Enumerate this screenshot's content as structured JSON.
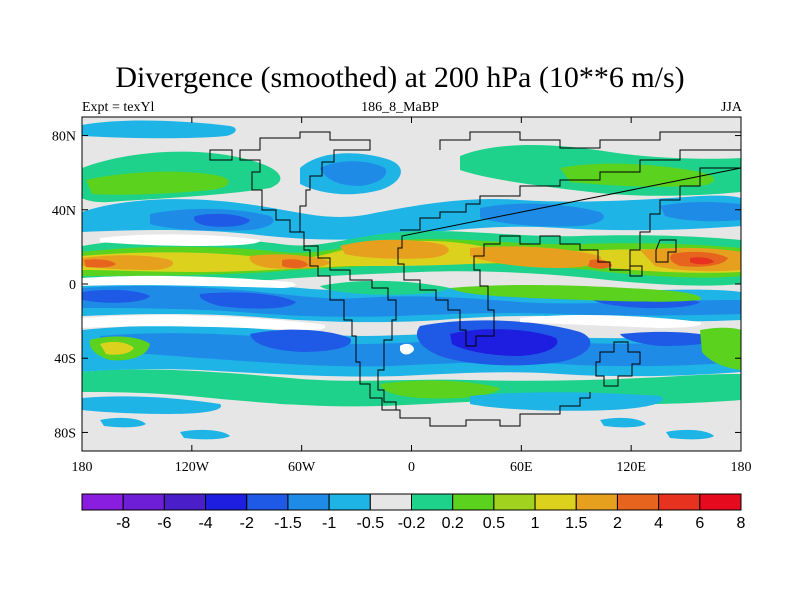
{
  "title": "Divergence (smoothed) at 200 hPa (10**6 m/s)",
  "left_label": "Expt = texYl",
  "center_label": "186_8_MaBP",
  "right_label": "JJA",
  "map": {
    "lon_range": [
      -180,
      180
    ],
    "lat_range": [
      -90,
      90
    ],
    "lon_ticks": [
      {
        "value": -180,
        "label": "180"
      },
      {
        "value": -120,
        "label": "120W"
      },
      {
        "value": -60,
        "label": "60W"
      },
      {
        "value": 0,
        "label": "0"
      },
      {
        "value": 60,
        "label": "60E"
      },
      {
        "value": 120,
        "label": "120E"
      },
      {
        "value": 180,
        "label": "180"
      }
    ],
    "lat_ticks": [
      {
        "value": 80,
        "label": "80N"
      },
      {
        "value": 40,
        "label": "40N"
      },
      {
        "value": 0,
        "label": "0"
      },
      {
        "value": -40,
        "label": "40S"
      },
      {
        "value": -80,
        "label": "80S"
      }
    ],
    "background_color": "#e6e6e6"
  },
  "colorbar": {
    "colors": [
      "#8a1ee0",
      "#6e1ed6",
      "#4a1ec8",
      "#1e1ee0",
      "#1e5ae6",
      "#1e8ce6",
      "#1eb4e6",
      "#e6e6e6",
      "#1ed28c",
      "#5ad21e",
      "#a0d21e",
      "#dcd21e",
      "#e6a01e",
      "#e6641e",
      "#e6321e",
      "#e60a1e"
    ],
    "labels": [
      "-8",
      "-6",
      "-4",
      "-2",
      "-1.5",
      "-1",
      "-0.5",
      "-0.2",
      "0.2",
      "0.5",
      "1",
      "1.5",
      "2",
      "4",
      "6",
      "8"
    ]
  }
}
